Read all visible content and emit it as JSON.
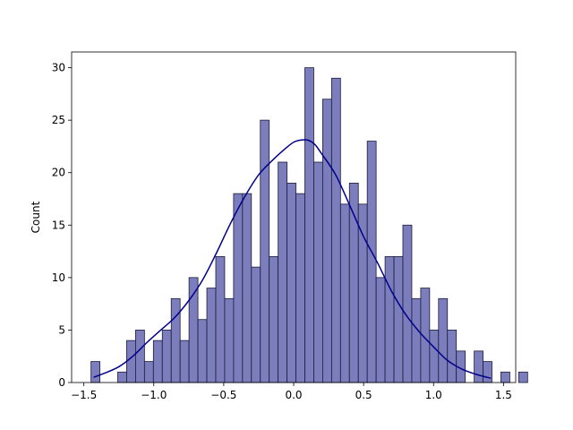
{
  "chart_data": {
    "type": "bar",
    "subtype": "histogram-with-kde",
    "title": "",
    "xlabel": "",
    "ylabel": "Count",
    "xlim": [
      -1.5873,
      1.5873
    ],
    "ylim": [
      0,
      31.5
    ],
    "xticks": [
      -1.5,
      -1.0,
      -0.5,
      0.0,
      0.5,
      1.0,
      1.5
    ],
    "xtick_labels": [
      "−1.5",
      "−1.0",
      "−0.5",
      "0.0",
      "0.5",
      "1.0",
      "1.5"
    ],
    "yticks": [
      0,
      5,
      10,
      15,
      20,
      25,
      30
    ],
    "ytick_labels": [
      "0",
      "5",
      "10",
      "15",
      "20",
      "25",
      "30"
    ],
    "grid": false,
    "bar_color": "#7b7dbd",
    "bar_edge_color": "#1c1c38",
    "kde_color": "#00008b",
    "bin_start": -1.4487,
    "bin_width": 0.0637,
    "values": [
      2,
      0,
      0,
      1,
      4,
      5,
      2,
      4,
      5,
      8,
      4,
      10,
      6,
      9,
      12,
      8,
      18,
      18,
      11,
      25,
      12,
      21,
      19,
      18,
      30,
      21,
      27,
      29,
      17,
      19,
      17,
      23,
      10,
      12,
      12,
      15,
      8,
      9,
      5,
      8,
      5,
      3,
      0,
      3,
      2,
      0,
      1,
      0,
      1
    ],
    "kde": {
      "x": [
        -1.43,
        -1.35,
        -1.25,
        -1.15,
        -1.05,
        -0.95,
        -0.85,
        -0.75,
        -0.65,
        -0.55,
        -0.45,
        -0.35,
        -0.25,
        -0.15,
        -0.05,
        0.0,
        0.05,
        0.1,
        0.15,
        0.2,
        0.3,
        0.4,
        0.5,
        0.6,
        0.7,
        0.8,
        0.9,
        1.0,
        1.1,
        1.2,
        1.3,
        1.41
      ],
      "y": [
        0.5,
        0.9,
        1.5,
        2.5,
        3.8,
        5.0,
        6.2,
        7.8,
        9.8,
        12.4,
        15.2,
        17.7,
        19.8,
        21.2,
        22.4,
        22.9,
        23.1,
        23.1,
        22.7,
        21.8,
        19.8,
        16.9,
        13.9,
        11.4,
        8.7,
        6.5,
        4.8,
        3.4,
        2.1,
        1.3,
        0.8,
        0.4
      ]
    }
  }
}
